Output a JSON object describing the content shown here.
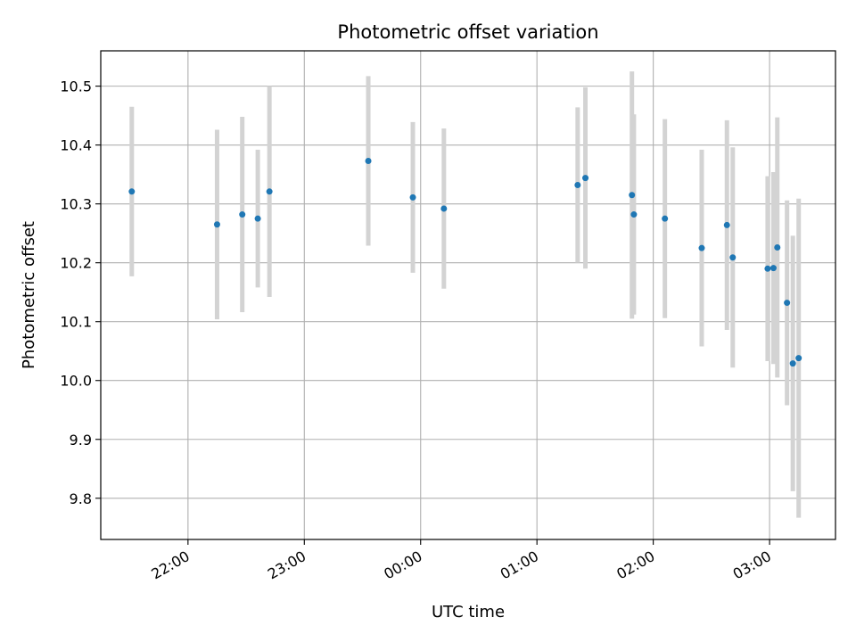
{
  "chart_data": {
    "type": "scatter",
    "title": "Photometric offset variation",
    "xlabel": "UTC time",
    "ylabel": "Photometric offset",
    "xlim": [
      "21:15",
      "03:34"
    ],
    "ylim": [
      9.73,
      10.56
    ],
    "grid": true,
    "x_ticks": [
      "22:00",
      "23:00",
      "00:00",
      "01:00",
      "02:00",
      "03:00"
    ],
    "y_ticks": [
      "9.8",
      "9.9",
      "10.0",
      "10.1",
      "10.2",
      "10.3",
      "10.4",
      "10.5"
    ],
    "colors": {
      "point": "#1f77b4",
      "errorbar": "#d3d3d3",
      "grid": "#b0b0b0"
    },
    "points": [
      {
        "x": "21:31",
        "y": 10.321,
        "yerr": 0.144
      },
      {
        "x": "22:15",
        "y": 10.265,
        "yerr": 0.161
      },
      {
        "x": "22:28",
        "y": 10.282,
        "yerr": 0.166
      },
      {
        "x": "22:36",
        "y": 10.275,
        "yerr": 0.117
      },
      {
        "x": "22:42",
        "y": 10.321,
        "yerr": 0.179
      },
      {
        "x": "23:33",
        "y": 10.373,
        "yerr": 0.144
      },
      {
        "x": "23:56",
        "y": 10.311,
        "yerr": 0.128
      },
      {
        "x": "00:12",
        "y": 10.292,
        "yerr": 0.136
      },
      {
        "x": "01:21",
        "y": 10.332,
        "yerr": 0.132
      },
      {
        "x": "01:25",
        "y": 10.344,
        "yerr": 0.154
      },
      {
        "x": "01:49",
        "y": 10.315,
        "yerr": 0.21
      },
      {
        "x": "01:50",
        "y": 10.282,
        "yerr": 0.17
      },
      {
        "x": "02:06",
        "y": 10.275,
        "yerr": 0.169
      },
      {
        "x": "02:25",
        "y": 10.225,
        "yerr": 0.167
      },
      {
        "x": "02:38",
        "y": 10.264,
        "yerr": 0.178
      },
      {
        "x": "02:41",
        "y": 10.209,
        "yerr": 0.187
      },
      {
        "x": "02:59",
        "y": 10.19,
        "yerr": 0.157
      },
      {
        "x": "03:02",
        "y": 10.191,
        "yerr": 0.163
      },
      {
        "x": "03:04",
        "y": 10.226,
        "yerr": 0.221
      },
      {
        "x": "03:09",
        "y": 10.132,
        "yerr": 0.174
      },
      {
        "x": "03:12",
        "y": 10.029,
        "yerr": 0.217
      },
      {
        "x": "03:15",
        "y": 10.038,
        "yerr": 0.271
      }
    ]
  }
}
